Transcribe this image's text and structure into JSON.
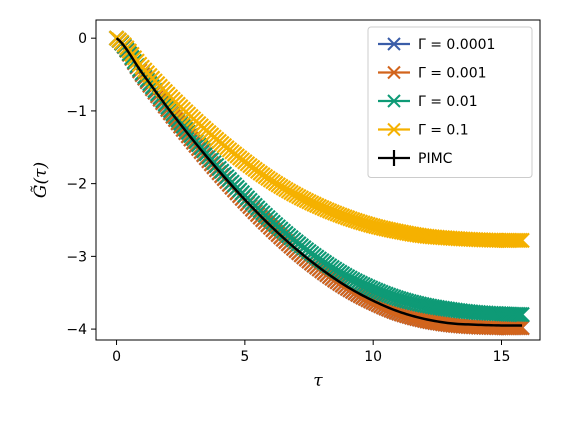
{
  "chart_data": {
    "type": "line",
    "xlabel": "τ",
    "ylabel": "G̃(τ)",
    "xlim": [
      -0.8,
      16.5
    ],
    "ylim": [
      -4.15,
      0.25
    ],
    "xticks": [
      0,
      5,
      10,
      15
    ],
    "xtick_labels": [
      "0",
      "5",
      "10",
      "15"
    ],
    "yticks": [
      0,
      -1,
      -2,
      -3,
      -4
    ],
    "ytick_labels": [
      "0",
      "−1",
      "−2",
      "−3",
      "−4"
    ],
    "legend_position": "top-right",
    "grid": false,
    "series": [
      {
        "name": "Γ = 0.0001",
        "color": "#3a5da8",
        "marker": "x",
        "x": [
          0,
          1,
          2,
          3,
          4,
          5,
          6,
          7,
          8,
          9,
          10,
          11,
          12,
          13,
          14,
          15,
          15.8
        ],
        "y": [
          0.0,
          -0.5,
          -0.98,
          -1.43,
          -1.85,
          -2.24,
          -2.6,
          -2.92,
          -3.2,
          -3.44,
          -3.63,
          -3.78,
          -3.88,
          -3.94,
          -3.97,
          -3.98,
          -3.98
        ]
      },
      {
        "name": "Γ = 0.001",
        "color": "#d2641c",
        "marker": "x",
        "x": [
          0,
          1,
          2,
          3,
          4,
          5,
          6,
          7,
          8,
          9,
          10,
          11,
          12,
          13,
          14,
          15,
          15.8
        ],
        "y": [
          0.0,
          -0.5,
          -0.98,
          -1.43,
          -1.85,
          -2.24,
          -2.6,
          -2.92,
          -3.2,
          -3.44,
          -3.63,
          -3.78,
          -3.88,
          -3.94,
          -3.97,
          -3.98,
          -3.98
        ]
      },
      {
        "name": "Γ = 0.01",
        "color": "#0e9a76",
        "marker": "x",
        "x": [
          0,
          1,
          2,
          3,
          4,
          5,
          6,
          7,
          8,
          9,
          10,
          11,
          12,
          13,
          14,
          15,
          15.8
        ],
        "y": [
          0.0,
          -0.48,
          -0.95,
          -1.38,
          -1.79,
          -2.16,
          -2.5,
          -2.8,
          -3.06,
          -3.28,
          -3.45,
          -3.58,
          -3.67,
          -3.73,
          -3.77,
          -3.79,
          -3.8
        ]
      },
      {
        "name": "Γ = 0.1",
        "color": "#f5b100",
        "marker": "x",
        "x": [
          0,
          1,
          2,
          3,
          4,
          5,
          6,
          7,
          8,
          9,
          10,
          11,
          12,
          13,
          14,
          15,
          15.8
        ],
        "y": [
          0.0,
          -0.4,
          -0.77,
          -1.11,
          -1.42,
          -1.7,
          -1.95,
          -2.16,
          -2.33,
          -2.47,
          -2.58,
          -2.66,
          -2.72,
          -2.75,
          -2.77,
          -2.78,
          -2.78
        ]
      },
      {
        "name": "PIMC",
        "color": "#000000",
        "marker": "+",
        "x": [
          0,
          1,
          2,
          3,
          4,
          5,
          6,
          7,
          8,
          9,
          10,
          11,
          12,
          13,
          14,
          15,
          15.8
        ],
        "y": [
          0.0,
          -0.48,
          -0.96,
          -1.41,
          -1.83,
          -2.22,
          -2.58,
          -2.9,
          -3.18,
          -3.42,
          -3.61,
          -3.76,
          -3.86,
          -3.92,
          -3.94,
          -3.95,
          -3.95
        ]
      }
    ]
  }
}
